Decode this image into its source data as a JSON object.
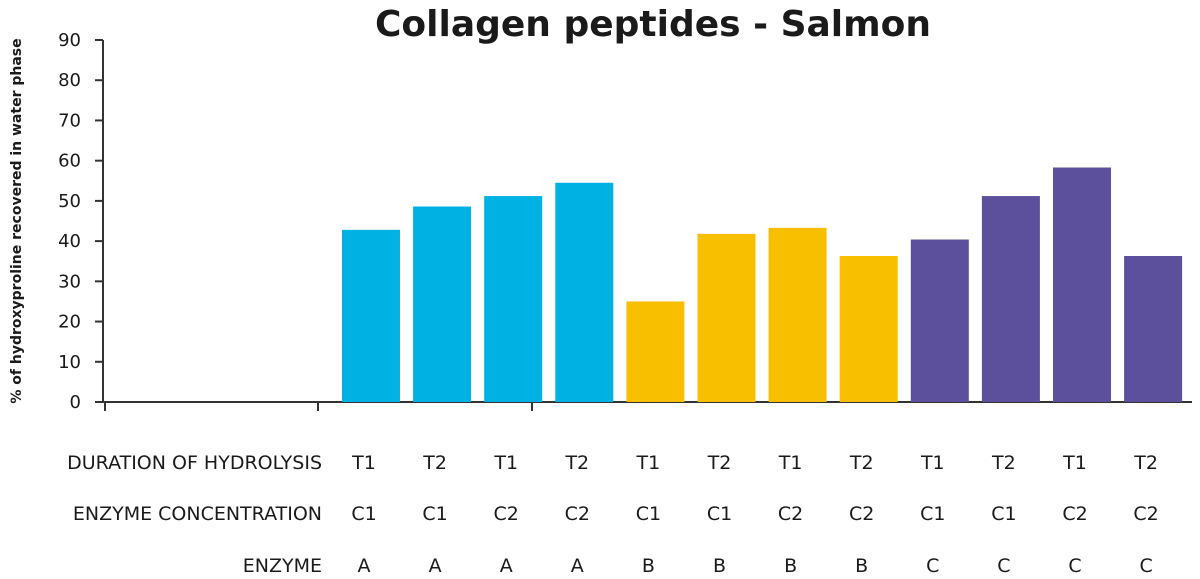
{
  "chart_data": {
    "type": "bar",
    "title": "Collagen peptides - Salmon",
    "xlabel": "",
    "ylabel": "% of hydroxyproline recovered in water phase",
    "ylim": [
      0,
      90
    ],
    "yticks": [
      0,
      10,
      20,
      30,
      40,
      50,
      60,
      70,
      80,
      90
    ],
    "grid": false,
    "legend": "none",
    "values": [
      42.8,
      48.6,
      51.2,
      54.5,
      25.0,
      41.8,
      43.3,
      36.3,
      40.4,
      51.2,
      58.3,
      36.3
    ],
    "bar_colors": [
      "#00b2e3",
      "#00b2e3",
      "#00b2e3",
      "#00b2e3",
      "#f8bf00",
      "#f8bf00",
      "#f8bf00",
      "#f8bf00",
      "#5c4f9c",
      "#5c4f9c",
      "#5c4f9c",
      "#5c4f9c"
    ],
    "category_rows": [
      {
        "label": "DURATION OF HYDROLYSIS",
        "values": [
          "T1",
          "T2",
          "T1",
          "T2",
          "T1",
          "T2",
          "T1",
          "T2",
          "T1",
          "T2",
          "T1",
          "T2"
        ]
      },
      {
        "label": "ENZYME CONCENTRATION",
        "values": [
          "C1",
          "C1",
          "C2",
          "C2",
          "C1",
          "C1",
          "C2",
          "C2",
          "C1",
          "C1",
          "C2",
          "C2"
        ]
      },
      {
        "label": "ENZYME",
        "values": [
          "A",
          "A",
          "A",
          "A",
          "B",
          "B",
          "B",
          "B",
          "C",
          "C",
          "C",
          "C"
        ]
      }
    ]
  }
}
